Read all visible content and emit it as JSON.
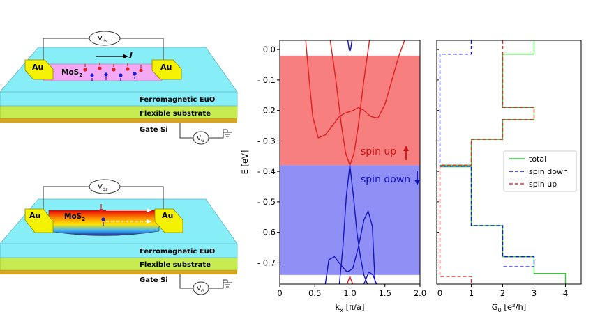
{
  "devices": {
    "top": {
      "vds": "V",
      "vds_sub": "ds",
      "au_left": "Au",
      "au_right": "Au",
      "channel": "MoS",
      "channel_sub": "2",
      "current": "J",
      "layer1": "Ferromagnetic EuO",
      "layer2": "Flexible substrate",
      "gate": "Gate Si",
      "vg": "V",
      "vg_sub": "G"
    },
    "bottom": {
      "vds": "V",
      "vds_sub": "ds",
      "au_left": "Au",
      "au_right": "Au",
      "channel": "MoS",
      "channel_sub": "2",
      "layer1": "Ferromagnetic EuO",
      "layer2": "Flexible substrate",
      "gate": "Gate Si",
      "vg": "V",
      "vg_sub": "G"
    }
  },
  "chart_data": [
    {
      "type": "line",
      "title": "",
      "xlabel": "k",
      "xlabel_sub": "x",
      "xlabel_unit": "[π/a]",
      "ylabel": "E [eV]",
      "xlim": [
        0,
        2.0
      ],
      "ylim": [
        -0.77,
        0.03
      ],
      "xticks": [
        "0",
        "0.5",
        "1.0",
        "1.5",
        "2.0"
      ],
      "yticks": [
        "0.0",
        "- 0.1",
        "- 0.2",
        "- 0.3",
        "- 0.4",
        "- 0.5",
        "- 0.6",
        "- 0.7"
      ],
      "regions": [
        {
          "name": "spin up",
          "from": -0.38,
          "to": -0.02,
          "color": "#f77f7f"
        },
        {
          "name": "spin down",
          "from": -0.74,
          "to": -0.38,
          "color": "#8f8ff5"
        }
      ],
      "annotations": [
        "spin up",
        "spin down"
      ],
      "series": [
        {
          "name": "spin up band 1",
          "color": "#e02020",
          "x": [
            0.37,
            0.42,
            0.47,
            0.55,
            0.65,
            0.75,
            0.85,
            0.92,
            0.98,
            1.05,
            1.12,
            1.2,
            1.3,
            1.4,
            1.5,
            1.6,
            1.7,
            1.78
          ],
          "y": [
            0.03,
            -0.1,
            -0.22,
            -0.29,
            -0.28,
            -0.25,
            -0.22,
            -0.21,
            -0.205,
            -0.2,
            -0.19,
            -0.2,
            -0.22,
            -0.225,
            -0.18,
            -0.1,
            -0.02,
            0.03
          ]
        },
        {
          "name": "spin up band 2",
          "color": "#e02020",
          "x": [
            0.72,
            0.8,
            0.88,
            0.94,
            1.0,
            1.06,
            1.12,
            1.2,
            1.28
          ],
          "y": [
            0.03,
            -0.1,
            -0.25,
            -0.34,
            -0.38,
            -0.34,
            -0.25,
            -0.1,
            0.03
          ]
        },
        {
          "name": "spin up band 3",
          "color": "#e02020",
          "x": [
            0.96,
            1.0,
            1.04
          ],
          "y": [
            -0.77,
            -0.745,
            -0.77
          ]
        },
        {
          "name": "spin down band 1",
          "color": "#1515c0",
          "x": [
            0.97,
            0.99,
            1.0,
            1.01,
            1.03
          ],
          "y": [
            0.03,
            0.0,
            -0.005,
            0.0,
            0.03
          ]
        },
        {
          "name": "spin down band 2",
          "color": "#1515c0",
          "x": [
            0.85,
            0.9,
            0.95,
            1.0,
            1.05,
            1.1,
            1.15,
            1.2,
            1.25
          ],
          "y": [
            -0.77,
            -0.65,
            -0.48,
            -0.38,
            -0.48,
            -0.6,
            -0.68,
            -0.74,
            -0.77
          ]
        },
        {
          "name": "spin down band 3",
          "color": "#1515c0",
          "x": [
            0.65,
            0.7,
            0.78,
            0.88,
            0.96,
            1.04,
            1.12,
            1.2,
            1.26,
            1.32,
            1.36
          ],
          "y": [
            -0.77,
            -0.69,
            -0.68,
            -0.71,
            -0.73,
            -0.72,
            -0.65,
            -0.56,
            -0.53,
            -0.58,
            -0.77
          ]
        },
        {
          "name": "spin down band 4",
          "color": "#1515c0",
          "x": [
            1.2,
            1.27,
            1.33,
            1.38
          ],
          "y": [
            -0.77,
            -0.73,
            -0.74,
            -0.77
          ]
        }
      ]
    },
    {
      "type": "line",
      "title": "",
      "xlabel": "G",
      "xlabel_sub": "0",
      "xlabel_unit": "[e²/h]",
      "ylabel": "",
      "xlim": [
        -0.1,
        4.5
      ],
      "ylim": [
        -0.77,
        0.03
      ],
      "xticks": [
        "0",
        "1",
        "2",
        "3",
        "4"
      ],
      "legend_position": "middle-right",
      "series": [
        {
          "name": "total",
          "color": "#2ecc2e",
          "dash": "solid",
          "x": [
            3,
            3,
            2,
            2,
            3,
            3,
            2,
            2,
            1,
            1,
            0,
            0,
            1,
            1,
            2,
            2,
            3,
            3,
            4,
            4
          ],
          "y": [
            0.03,
            -0.015,
            -0.015,
            -0.19,
            -0.19,
            -0.23,
            -0.23,
            -0.295,
            -0.295,
            -0.38,
            -0.38,
            -0.385,
            -0.385,
            -0.578,
            -0.578,
            -0.68,
            -0.68,
            -0.735,
            -0.735,
            -0.77
          ]
        },
        {
          "name": "spin down",
          "color": "#1a1ad0",
          "dash": "dashed",
          "x": [
            1,
            1,
            0,
            0,
            1,
            1,
            2,
            2,
            3,
            3,
            2
          ],
          "y": [
            0.03,
            -0.015,
            -0.015,
            -0.383,
            -0.383,
            -0.578,
            -0.578,
            -0.68,
            -0.68,
            -0.713,
            -0.713
          ]
        },
        {
          "name": "spin up",
          "color": "#e03030",
          "dash": "dashed",
          "x": [
            2,
            2,
            3,
            3,
            2,
            2,
            1,
            1,
            0,
            0,
            1,
            1
          ],
          "y": [
            0.03,
            -0.19,
            -0.19,
            -0.23,
            -0.23,
            -0.295,
            -0.295,
            -0.38,
            -0.38,
            -0.745,
            -0.745,
            -0.77
          ]
        }
      ]
    }
  ]
}
